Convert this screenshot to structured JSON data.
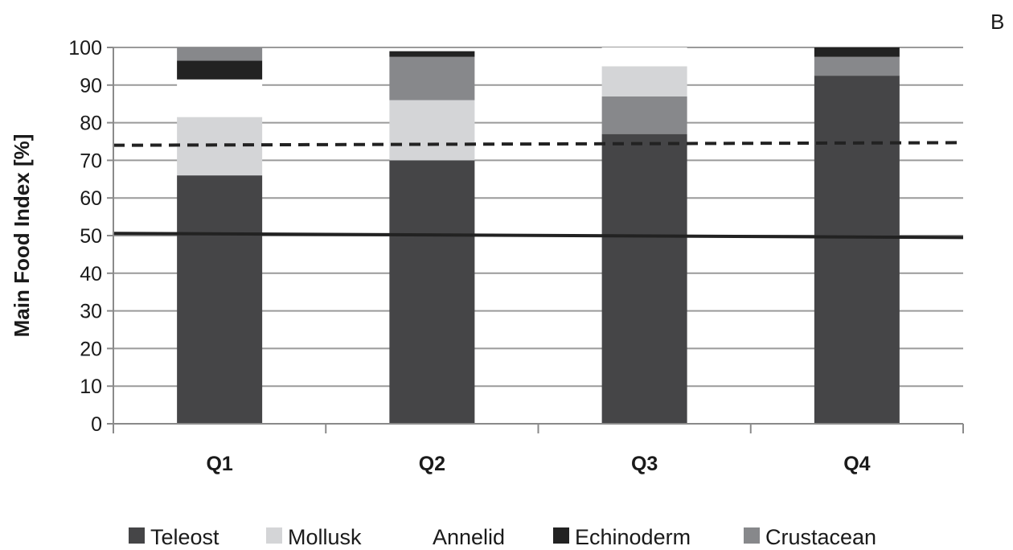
{
  "panel_label": "B",
  "chart_data": {
    "type": "bar",
    "stacked": true,
    "ylabel": "Main Food Index [%]",
    "xlabel": "",
    "ylim": [
      0,
      100
    ],
    "yticks": [
      0,
      10,
      20,
      30,
      40,
      50,
      60,
      70,
      80,
      90,
      100
    ],
    "grid": true,
    "legend_position": "bottom",
    "categories": [
      "Q1",
      "Q2",
      "Q3",
      "Q4"
    ],
    "series": [
      {
        "name": "Teleost",
        "color": "#454547",
        "values": [
          66,
          70,
          77,
          92.5
        ]
      },
      {
        "name": "Mollusk",
        "color": "#d4d5d7",
        "values": [
          15.5,
          16,
          0,
          0
        ]
      },
      {
        "name": "Annelid",
        "color": "#ffffff",
        "values": [
          10,
          0,
          0,
          0
        ]
      },
      {
        "name": "Echinoderm",
        "color": "#222222",
        "values": [
          5,
          1.5,
          0,
          2.5
        ]
      },
      {
        "name": "Crustacean",
        "color": "#87888b",
        "values": [
          3.5,
          11.5,
          10,
          5
        ]
      }
    ],
    "stack_order": [
      [
        "Teleost",
        "Mollusk",
        "Annelid",
        "Echinoderm",
        "Crustacean"
      ],
      [
        "Teleost",
        "Mollusk",
        "Crustacean",
        "Echinoderm",
        "Annelid"
      ],
      [
        "Teleost",
        "Crustacean",
        "Mollusk",
        "Annelid"
      ],
      [
        "Teleost",
        "Crustacean",
        "Echinoderm"
      ]
    ],
    "q3_extra": {
      "Mollusk": 8,
      "Annelid": 5
    },
    "lines": [
      {
        "style": "dashed",
        "color": "#222222",
        "y_start": 74,
        "y_end": 74.7
      },
      {
        "style": "solid",
        "color": "#222222",
        "y_start": 50.6,
        "y_end": 49.5
      }
    ]
  }
}
